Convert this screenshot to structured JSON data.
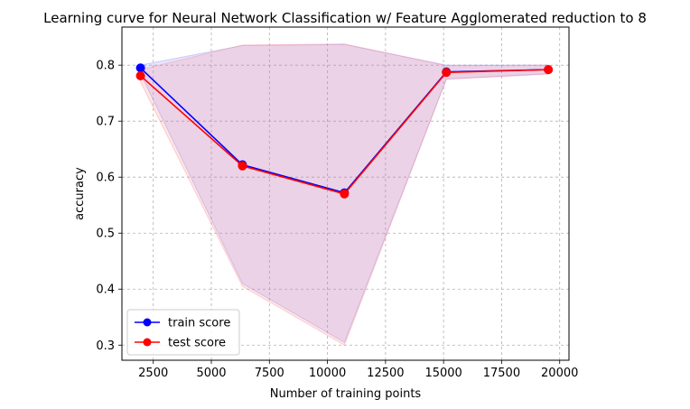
{
  "chart_data": {
    "type": "line",
    "title": "Learning curve for Neural Network Classification w/ Feature Agglomerated reduction to 8",
    "xlabel": "Number of training points",
    "ylabel": "accuracy",
    "xlim": [
      1150,
      20400
    ],
    "ylim": [
      0.273,
      0.868
    ],
    "x_ticks": [
      2500,
      5000,
      7500,
      10000,
      12500,
      15000,
      17500,
      20000
    ],
    "y_ticks": [
      0.3,
      0.4,
      0.5,
      0.6,
      0.7,
      0.8
    ],
    "x_tick_labels": [
      "2500",
      "5000",
      "7500",
      "10000",
      "12500",
      "15000",
      "17500",
      "20000"
    ],
    "y_tick_labels": [
      "0.3",
      "0.4",
      "0.5",
      "0.6",
      "0.7",
      "0.8"
    ],
    "grid": true,
    "grid_style": "dashed",
    "legend_position": "lower-left",
    "x": [
      1950,
      6340,
      10730,
      15120,
      19510
    ],
    "series": [
      {
        "name": "train score",
        "color": "#0000ff",
        "band_color": "#8080ff",
        "values": [
          0.795,
          0.622,
          0.572,
          0.788,
          0.792
        ],
        "band_lower": [
          0.785,
          0.41,
          0.305,
          0.775,
          0.785
        ],
        "band_upper": [
          0.8,
          0.835,
          0.837,
          0.8,
          0.8
        ]
      },
      {
        "name": "test score",
        "color": "#ff0000",
        "band_color": "#ff8080",
        "values": [
          0.781,
          0.62,
          0.57,
          0.787,
          0.792
        ],
        "band_lower": [
          0.77,
          0.405,
          0.3,
          0.775,
          0.784
        ],
        "band_upper": [
          0.792,
          0.836,
          0.838,
          0.799,
          0.8
        ]
      }
    ]
  }
}
